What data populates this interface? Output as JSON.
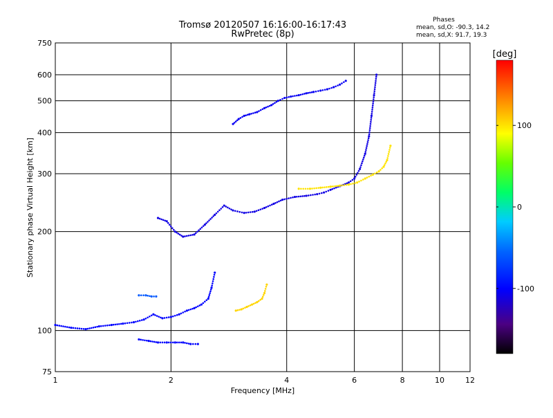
{
  "chart_data": {
    "type": "scatter",
    "title": "Tromsø 20120507 16:16:00-16:17:43",
    "subtitle": "RwPretec (8p)",
    "xlabel": "Frequency [MHz]",
    "ylabel": "Stationary phase Virtual Height [km]",
    "x_scale": "log",
    "y_scale": "log",
    "xlim": [
      1,
      12
    ],
    "ylim": [
      75,
      750
    ],
    "x_ticks": [
      1,
      2,
      4,
      6,
      8,
      10,
      12
    ],
    "x_tick_labels": [
      "1",
      "2",
      "4",
      "6",
      "8",
      "10",
      "12"
    ],
    "y_ticks": [
      75,
      100,
      200,
      300,
      400,
      500,
      600,
      750
    ],
    "y_tick_labels": [
      "75",
      "100",
      "200",
      "300",
      "400",
      "500",
      "600",
      "750"
    ],
    "grid": true,
    "phases_info": {
      "heading": "Phases",
      "line1": "mean, sd,O: -90.3, 14.2",
      "line2": "mean, sd,X:  91.7, 19.3"
    },
    "colorbar": {
      "label": "[deg]",
      "range": [
        -180,
        180
      ],
      "ticks": [
        100,
        0,
        -100
      ],
      "tick_labels": [
        "100",
        "0",
        "-100"
      ]
    },
    "traces": [
      {
        "x": [
          1.0,
          1.1,
          1.2,
          1.3,
          1.4,
          1.5,
          1.6,
          1.7,
          1.8,
          1.9,
          2.0,
          2.1,
          2.2,
          2.3,
          2.4,
          2.5,
          2.55,
          2.6
        ],
        "y": [
          104,
          102,
          101,
          103,
          104,
          105,
          106,
          108,
          112,
          109,
          110,
          112,
          115,
          117,
          120,
          125,
          135,
          150
        ],
        "phase": -100
      },
      {
        "x": [
          1.85,
          1.95,
          2.05,
          2.15,
          2.3,
          2.45,
          2.6,
          2.75,
          2.9,
          3.1,
          3.3,
          3.5,
          3.7,
          3.9,
          4.2,
          4.5,
          4.8,
          5.0,
          5.2,
          5.5,
          5.8,
          6.0,
          6.2,
          6.4,
          6.55,
          6.65,
          6.75,
          6.85
        ],
        "y": [
          220,
          215,
          200,
          193,
          196,
          210,
          225,
          240,
          232,
          228,
          230,
          236,
          243,
          250,
          255,
          257,
          260,
          263,
          268,
          275,
          282,
          290,
          310,
          345,
          390,
          450,
          520,
          600
        ],
        "phase": -110
      },
      {
        "x": [
          2.9,
          3.0,
          3.1,
          3.2,
          3.35,
          3.5,
          3.65,
          3.8,
          3.95,
          4.1,
          4.3,
          4.5,
          4.7,
          4.9,
          5.1,
          5.3,
          5.5,
          5.7
        ],
        "y": [
          425,
          440,
          450,
          455,
          462,
          475,
          485,
          500,
          510,
          515,
          520,
          527,
          532,
          537,
          542,
          550,
          560,
          575
        ],
        "phase": -105
      },
      {
        "x": [
          4.3,
          4.6,
          4.9,
          5.2,
          5.5,
          5.8,
          6.1,
          6.4,
          6.7,
          6.95,
          7.15,
          7.3,
          7.45
        ],
        "y": [
          270,
          270,
          272,
          274,
          276,
          278,
          282,
          290,
          298,
          305,
          315,
          330,
          365
        ],
        "phase": 100
      },
      {
        "x": [
          2.95,
          3.05,
          3.15,
          3.25,
          3.35,
          3.45,
          3.5,
          3.55
        ],
        "y": [
          115,
          116,
          118,
          120,
          122,
          125,
          130,
          138
        ],
        "phase": 105
      },
      {
        "x": [
          1.65,
          1.75,
          1.85,
          1.95,
          2.05,
          2.15,
          2.25,
          2.35
        ],
        "y": [
          94,
          93,
          92,
          92,
          92,
          92,
          91,
          91
        ],
        "phase": -100
      },
      {
        "x": [
          1.65,
          1.72,
          1.78,
          1.83
        ],
        "y": [
          128,
          128,
          127,
          127
        ],
        "phase": -60
      }
    ]
  }
}
